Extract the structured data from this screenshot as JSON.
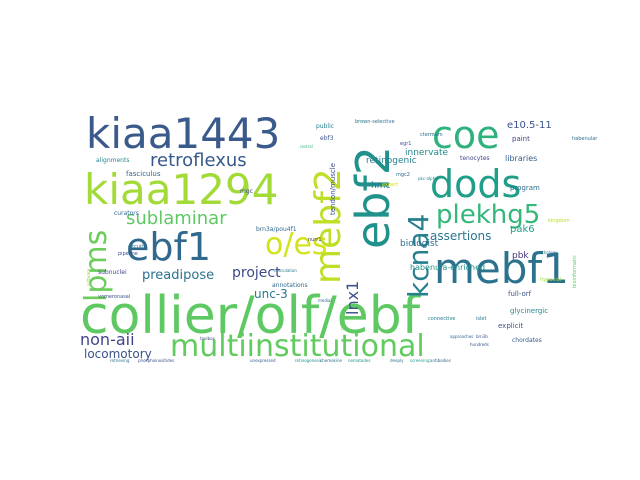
{
  "words": [
    {
      "text": "collier/olf/ebf",
      "color": "#5ec962"
    },
    {
      "text": "kiaa1443",
      "color": "#3b5a8c"
    },
    {
      "text": "kiaa1294",
      "color": "#a2da37"
    },
    {
      "text": "multiinstitutional",
      "color": "#62cb5f"
    },
    {
      "text": "ebf1",
      "color": "#31688e"
    },
    {
      "text": "mebf2",
      "color": "#bddf26"
    },
    {
      "text": "ebf2",
      "color": "#21918c"
    },
    {
      "text": "coe",
      "color": "#2db27d"
    },
    {
      "text": "dods",
      "color": "#1f9e89"
    },
    {
      "text": "mebf1",
      "color": "#2c728e"
    },
    {
      "text": "plekhg5",
      "color": "#35b779"
    },
    {
      "text": "kcna4",
      "color": "#277f8e"
    },
    {
      "text": "o/es",
      "color": "#d2e21b"
    },
    {
      "text": "lpms",
      "color": "#6ccd5a"
    },
    {
      "text": "retroflexus",
      "color": "#38598c"
    },
    {
      "text": "sublaminar",
      "color": "#5ec962"
    },
    {
      "text": "non-aii",
      "color": "#414487"
    },
    {
      "text": "preadipose",
      "color": "#2c728e"
    },
    {
      "text": "project",
      "color": "#3e4a89"
    },
    {
      "text": "lnx1",
      "color": "#3b528b"
    },
    {
      "text": "unc-3",
      "color": "#2a788e"
    },
    {
      "text": "locomotory",
      "color": "#3a538b"
    },
    {
      "text": "assertions",
      "color": "#2a768e"
    },
    {
      "text": "biologist",
      "color": "#2e6f8e"
    },
    {
      "text": "retinogenic",
      "color": "#277e8e"
    },
    {
      "text": "e10.5-11",
      "color": "#3b528b"
    },
    {
      "text": "innervate",
      "color": "#23888e"
    },
    {
      "text": "pak6",
      "color": "#1fa187"
    },
    {
      "text": "pbk",
      "color": "#46337e"
    },
    {
      "text": "habenula-enriched",
      "color": "#20928c"
    },
    {
      "text": "hmc",
      "color": "#2a788e"
    },
    {
      "text": "full-orf",
      "color": "#3b528b"
    },
    {
      "text": "libraries",
      "color": "#375b8d"
    },
    {
      "text": "paint",
      "color": "#3f4788"
    },
    {
      "text": "tendon/muscle",
      "color": "#3e4c8a"
    },
    {
      "text": "ebf3",
      "color": "#3b528b"
    },
    {
      "text": "public",
      "color": "#277f8e"
    },
    {
      "text": "fasciculus",
      "color": "#33638d"
    },
    {
      "text": "alignments",
      "color": "#25848e"
    },
    {
      "text": "curators",
      "color": "#2f6b8e"
    },
    {
      "text": "brn3a/pou4f1",
      "color": "#31688e"
    },
    {
      "text": "mgc",
      "color": "#3e4989"
    },
    {
      "text": "annotations",
      "color": "#30698e"
    },
    {
      "text": "program",
      "color": "#2e6e8e"
    },
    {
      "text": "explicit",
      "color": "#3b528b"
    },
    {
      "text": "glycinergic",
      "color": "#23898e"
    },
    {
      "text": "chordates",
      "color": "#375a8c"
    },
    {
      "text": "subnuclei",
      "color": "#3f4889"
    },
    {
      "text": "vomeronasal",
      "color": "#3b528b"
    },
    {
      "text": "tenocytes",
      "color": "#404688"
    },
    {
      "text": "brown-selective",
      "color": "#2c728e"
    },
    {
      "text": "expert",
      "color": "#dde318"
    },
    {
      "text": "pipeline",
      "color": "#3b528b"
    },
    {
      "text": "nurr1",
      "color": "#46327e"
    },
    {
      "text": "ctermum",
      "color": "#2e6e8e"
    },
    {
      "text": "islet",
      "color": "#2c738e"
    },
    {
      "text": "connective",
      "color": "#277f8e"
    },
    {
      "text": "habenular",
      "color": "#2d708e"
    },
    {
      "text": "brn3b",
      "color": "#3b528b"
    },
    {
      "text": "pkc-alpha",
      "color": "#277f8e"
    },
    {
      "text": "olf-coe",
      "color": "#6ece58"
    },
    {
      "text": "medial",
      "color": "#31688e"
    },
    {
      "text": "circuits",
      "color": "#2c728e"
    },
    {
      "text": "kingdom",
      "color": "#b5de2b"
    },
    {
      "text": "hypaxial",
      "color": "#a0da39"
    },
    {
      "text": "bioinformatic",
      "color": "#5ec962"
    },
    {
      "text": "software",
      "color": "#8fd744"
    },
    {
      "text": "orthology",
      "color": "#2a778e"
    },
    {
      "text": "phosphoinositides",
      "color": "#3b528b"
    },
    {
      "text": "deeply",
      "color": "#2c728e"
    },
    {
      "text": "screening",
      "color": "#1f998a"
    },
    {
      "text": "antibodies",
      "color": "#31688e"
    },
    {
      "text": "nematodes",
      "color": "#20928c"
    },
    {
      "text": "retinogenesis",
      "color": "#228d8d"
    },
    {
      "text": "unexpressed",
      "color": "#375b8d"
    },
    {
      "text": "chemokine",
      "color": "#2e6e8e"
    },
    {
      "text": "approaches",
      "color": "#31688e"
    },
    {
      "text": "hundreds",
      "color": "#3b528b"
    },
    {
      "text": "rostral",
      "color": "#35b779"
    },
    {
      "text": "retrieving",
      "color": "#2c728e"
    },
    {
      "text": "toolbox",
      "color": "#3b528b"
    },
    {
      "text": "neurulation",
      "color": "#2a788e"
    },
    {
      "text": "egr1",
      "color": "#3b528b"
    },
    {
      "text": "mgc2",
      "color": "#31688e"
    }
  ]
}
